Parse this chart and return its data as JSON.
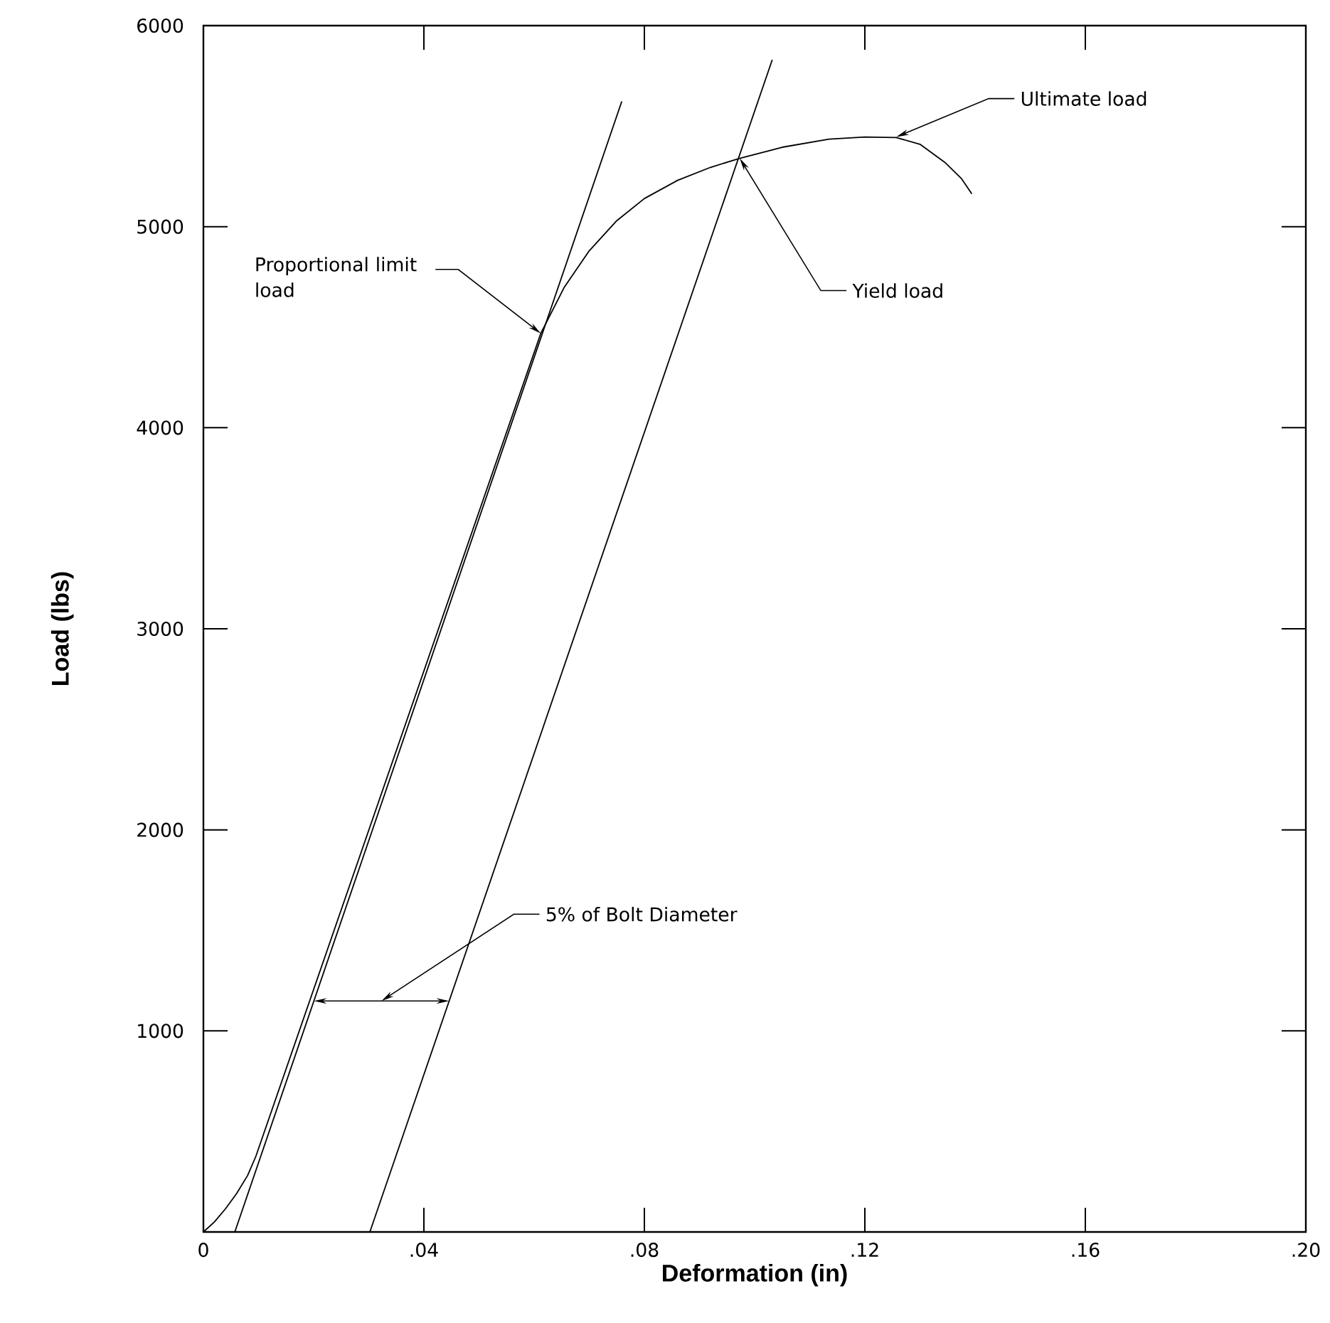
{
  "chart_data": {
    "type": "line",
    "xlabel": "Deformation (in)",
    "ylabel": "Load (lbs)",
    "xlim": [
      0,
      0.2
    ],
    "ylim": [
      0,
      6000
    ],
    "xticks": [
      0,
      {
        "value": 0.04,
        "label": ".04"
      },
      {
        "value": 0.08,
        "label": ".08"
      },
      {
        "value": 0.12,
        "label": ".12"
      },
      {
        "value": 0.16,
        "label": ".16"
      },
      {
        "value": 0.2,
        "label": ".20"
      }
    ],
    "yticks": [
      1000,
      2000,
      3000,
      4000,
      5000,
      6000
    ],
    "marker": "none",
    "line_style": "solid",
    "series": [
      {
        "color": "#000000",
        "x": [
          0,
          0.002,
          0.004,
          0.006,
          0.008,
          0.0095,
          0.0612,
          0.0655,
          0.07,
          0.075,
          0.08,
          0.086,
          0.092,
          0.0973,
          0.105,
          0.1135,
          0.12,
          0.1257,
          0.13,
          0.1345,
          0.1375,
          0.1394
        ],
        "values": [
          0,
          50,
          115,
          190,
          280,
          375,
          4469,
          4700,
          4880,
          5030,
          5140,
          5230,
          5295,
          5340,
          5395,
          5435,
          5446,
          5443,
          5410,
          5320,
          5240,
          5163
        ]
      },
      {
        "color": "#000000",
        "x": [
          0.0057,
          0.0759
        ],
        "values": [
          0,
          5623
        ]
      },
      {
        "color": "#000000",
        "x": [
          0.0302,
          0.1032
        ],
        "values": [
          0,
          5830
        ]
      }
    ],
    "annotations": [
      {
        "text": "Ultimate load",
        "x": 0.1257,
        "y": 5446
      },
      {
        "text": "Yield load",
        "x": 0.0973,
        "y": 5340
      },
      {
        "text": "Proportional limit load",
        "x": 0.0612,
        "y": 4469
      },
      "5% of Bolt Diameter"
    ]
  }
}
